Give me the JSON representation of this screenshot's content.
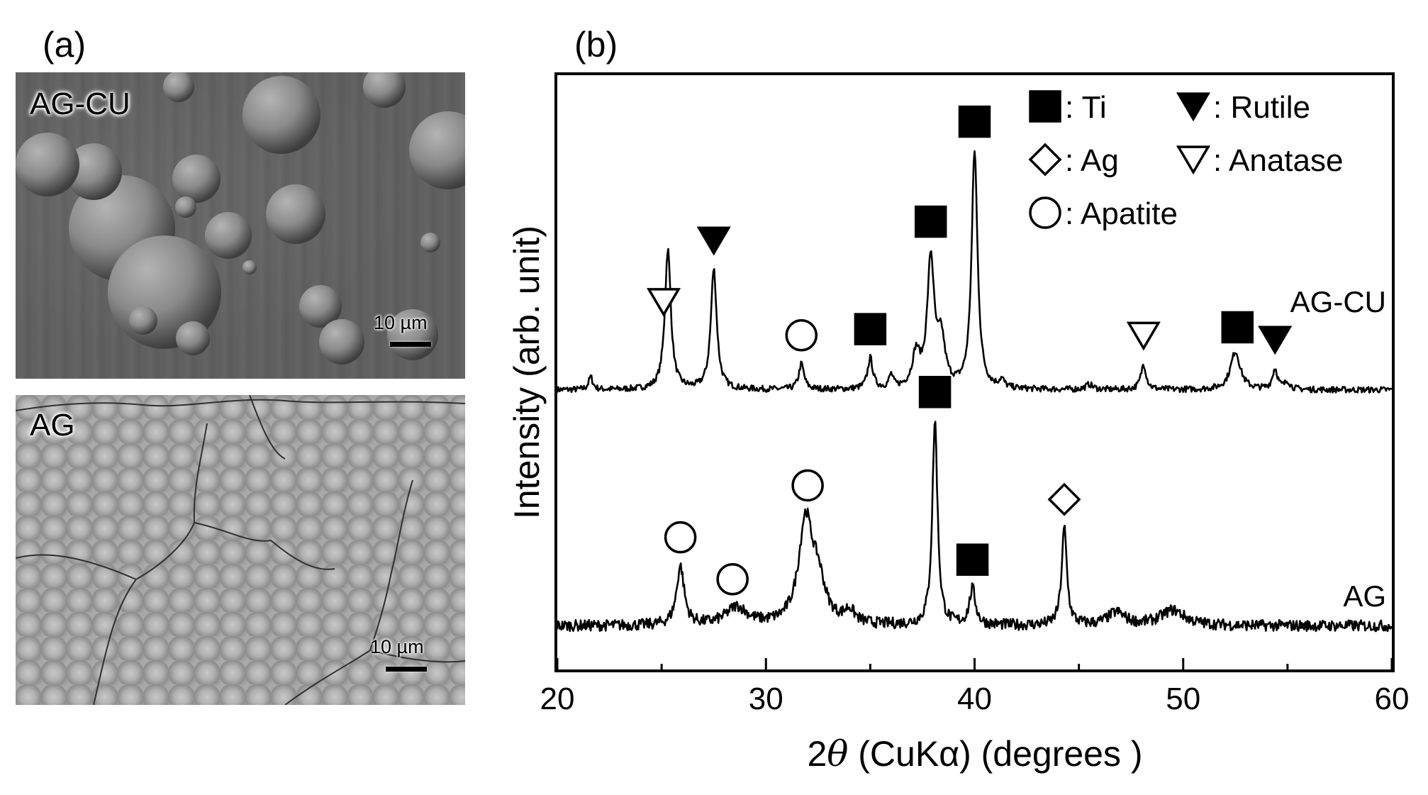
{
  "panel_a": {
    "label": "(a)",
    "images": [
      {
        "name": "AG-CU",
        "scale_label": "10 µm"
      },
      {
        "name": "AG",
        "scale_label": "10 µm"
      }
    ]
  },
  "panel_b": {
    "label": "(b)"
  },
  "chart_data": {
    "type": "line",
    "title": "",
    "xlabel_prefix": "2",
    "xlabel_theta": "θ",
    "xlabel_rest": " (CuKα) (degrees )",
    "ylabel": "Intensity (arb. unit)",
    "xlim": [
      20,
      60
    ],
    "xticks": [
      20,
      30,
      40,
      50,
      60
    ],
    "y_ticks_shown": false,
    "grid": false,
    "legend_position": "top-right",
    "legend": [
      {
        "marker": "filled-square",
        "label": ": Ti"
      },
      {
        "marker": "filled-down-triangle",
        "label": ": Rutile"
      },
      {
        "marker": "open-diamond",
        "label": ": Ag"
      },
      {
        "marker": "open-down-triangle",
        "label": ": Anatase"
      },
      {
        "marker": "open-circle",
        "label": ": Apatite"
      }
    ],
    "series": [
      {
        "name": "AG-CU",
        "baseline": 0.07,
        "peaks": [
          {
            "x": 21.6,
            "h": 0.05,
            "w": 0.12
          },
          {
            "x": 25.3,
            "h": 0.55,
            "w": 0.17
          },
          {
            "x": 27.5,
            "h": 0.47,
            "w": 0.17
          },
          {
            "x": 31.7,
            "h": 0.1,
            "w": 0.15
          },
          {
            "x": 35.0,
            "h": 0.12,
            "w": 0.15
          },
          {
            "x": 36.0,
            "h": 0.05,
            "w": 0.12
          },
          {
            "x": 37.2,
            "h": 0.13,
            "w": 0.22
          },
          {
            "x": 37.9,
            "h": 0.5,
            "w": 0.2
          },
          {
            "x": 38.4,
            "h": 0.18,
            "w": 0.22
          },
          {
            "x": 40.0,
            "h": 0.93,
            "w": 0.17
          },
          {
            "x": 41.3,
            "h": 0.03,
            "w": 0.15
          },
          {
            "x": 45.5,
            "h": 0.02,
            "w": 0.2
          },
          {
            "x": 48.1,
            "h": 0.1,
            "w": 0.15
          },
          {
            "x": 52.5,
            "h": 0.15,
            "w": 0.28
          },
          {
            "x": 54.4,
            "h": 0.08,
            "w": 0.15
          },
          {
            "x": 55.0,
            "h": 0.03,
            "w": 0.15
          }
        ],
        "noise": 0.012
      },
      {
        "name": "AG",
        "baseline": 0.09,
        "peaks": [
          {
            "x": 25.9,
            "h": 0.23,
            "w": 0.22
          },
          {
            "x": 28.6,
            "h": 0.07,
            "w": 0.6
          },
          {
            "x": 31.9,
            "h": 0.4,
            "w": 0.4
          },
          {
            "x": 32.5,
            "h": 0.15,
            "w": 0.4
          },
          {
            "x": 34.0,
            "h": 0.05,
            "w": 0.3
          },
          {
            "x": 38.1,
            "h": 0.8,
            "w": 0.15
          },
          {
            "x": 39.9,
            "h": 0.14,
            "w": 0.18
          },
          {
            "x": 44.3,
            "h": 0.38,
            "w": 0.15
          },
          {
            "x": 46.8,
            "h": 0.05,
            "w": 0.5
          },
          {
            "x": 49.5,
            "h": 0.06,
            "w": 0.7
          }
        ],
        "noise": 0.022
      }
    ],
    "annotations": [
      {
        "series": "AG-CU",
        "x": 25.1,
        "marker": "open-down-triangle"
      },
      {
        "series": "AG-CU",
        "x": 27.5,
        "marker": "filled-down-triangle"
      },
      {
        "series": "AG-CU",
        "x": 31.7,
        "marker": "open-circle"
      },
      {
        "series": "AG-CU",
        "x": 35.0,
        "marker": "filled-square"
      },
      {
        "series": "AG-CU",
        "x": 37.9,
        "marker": "filled-square"
      },
      {
        "series": "AG-CU",
        "x": 40.0,
        "marker": "filled-square"
      },
      {
        "series": "AG-CU",
        "x": 48.1,
        "marker": "open-down-triangle"
      },
      {
        "series": "AG-CU",
        "x": 52.6,
        "marker": "filled-square"
      },
      {
        "series": "AG-CU",
        "x": 54.4,
        "marker": "filled-down-triangle"
      },
      {
        "series": "AG",
        "x": 25.9,
        "marker": "open-circle"
      },
      {
        "series": "AG",
        "x": 28.4,
        "marker": "open-circle"
      },
      {
        "series": "AG",
        "x": 32.0,
        "marker": "open-circle"
      },
      {
        "series": "AG",
        "x": 38.1,
        "marker": "filled-square"
      },
      {
        "series": "AG",
        "x": 39.9,
        "marker": "filled-square"
      },
      {
        "series": "AG",
        "x": 44.3,
        "marker": "open-diamond"
      }
    ]
  }
}
